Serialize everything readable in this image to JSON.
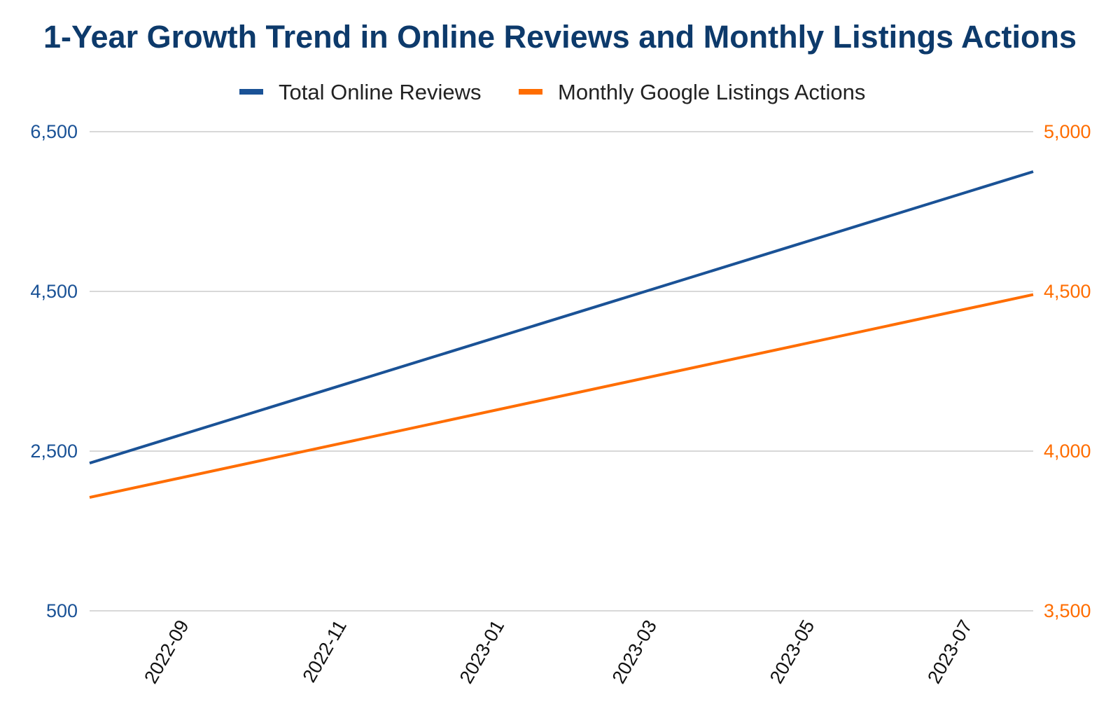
{
  "chart_data": {
    "type": "line",
    "title": "1-Year Growth Trend in Online Reviews and Monthly Listings Actions",
    "x": [
      "2022-08",
      "2023-08"
    ],
    "x_tick_labels": [
      "2022-09",
      "2022-11",
      "2023-01",
      "2023-03",
      "2023-05",
      "2023-07"
    ],
    "x_tick_dates": [
      "2022-09-01",
      "2022-11-01",
      "2023-01-01",
      "2023-03-01",
      "2023-05-01",
      "2023-07-01"
    ],
    "x_range": [
      "2022-08-01",
      "2023-08-01"
    ],
    "legend_position": "top",
    "grid": true,
    "series": [
      {
        "name": "Total Online Reviews",
        "axis": "left",
        "color": "#1a5296",
        "x": [
          "2022-08-01",
          "2023-08-01"
        ],
        "values": [
          2350,
          6000
        ]
      },
      {
        "name": "Monthly Google Listings Actions",
        "axis": "right",
        "color": "#ff6d00",
        "x": [
          "2022-08-01",
          "2023-08-01"
        ],
        "values": [
          3855,
          4490
        ]
      }
    ],
    "y_left": {
      "ylim": [
        500,
        6500
      ],
      "ticks": [
        500,
        2500,
        4500,
        6500
      ],
      "tick_labels": [
        "500",
        "2,500",
        "4,500",
        "6,500"
      ],
      "color": "#1a5296"
    },
    "y_right": {
      "ylim": [
        3500,
        5000
      ],
      "ticks": [
        3500,
        4000,
        4500,
        5000
      ],
      "tick_labels": [
        "3,500",
        "4,000",
        "4,500",
        "5,000"
      ],
      "color": "#ff6d00"
    }
  },
  "title_color": "#0d3a6b",
  "gridline_color": "#cccccc"
}
